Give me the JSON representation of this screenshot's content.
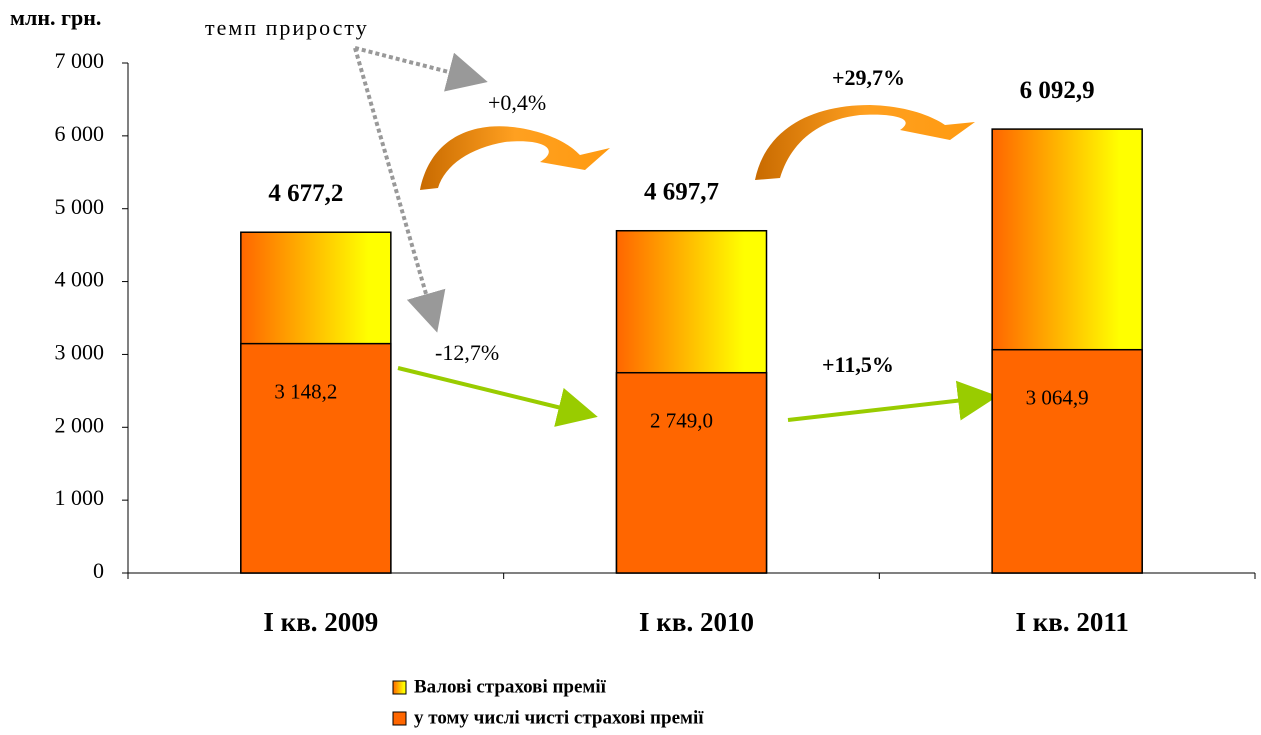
{
  "chart_data": {
    "type": "bar",
    "y_label": "млн. грн.",
    "categories": [
      "I кв. 2009",
      "I кв. 2010",
      "I кв. 2011"
    ],
    "series": [
      {
        "name": "Валові страхові премії",
        "color": "#ffff00",
        "values": [
          4677.2,
          4697.7,
          6092.9
        ],
        "value_labels": [
          "4 677,2",
          "4 697,7",
          "6 092,9"
        ]
      },
      {
        "name": "у тому числі чисті страхові премії",
        "color": "#ff6600",
        "values": [
          3148.2,
          2749.0,
          3064.9
        ],
        "value_labels": [
          "3 148,2",
          "2 749,0",
          "3 064,9"
        ]
      }
    ],
    "annotations": [
      "темп приросту",
      "+0,4%",
      "+29,7%",
      "-12,7%",
      "+11,5%"
    ],
    "ylim": [
      0,
      7000
    ],
    "yticks": [
      0,
      {
        "value": 1000,
        "label": "1 000"
      },
      {
        "value": 2000,
        "label": "2 000"
      },
      {
        "value": 3000,
        "label": "3 000"
      },
      {
        "value": 4000,
        "label": "4 000"
      },
      {
        "value": 5000,
        "label": "5 000"
      },
      {
        "value": 6000,
        "label": "6 000"
      },
      {
        "value": 7000,
        "label": "7 000"
      }
    ],
    "grid": false,
    "legend": "bottom"
  }
}
